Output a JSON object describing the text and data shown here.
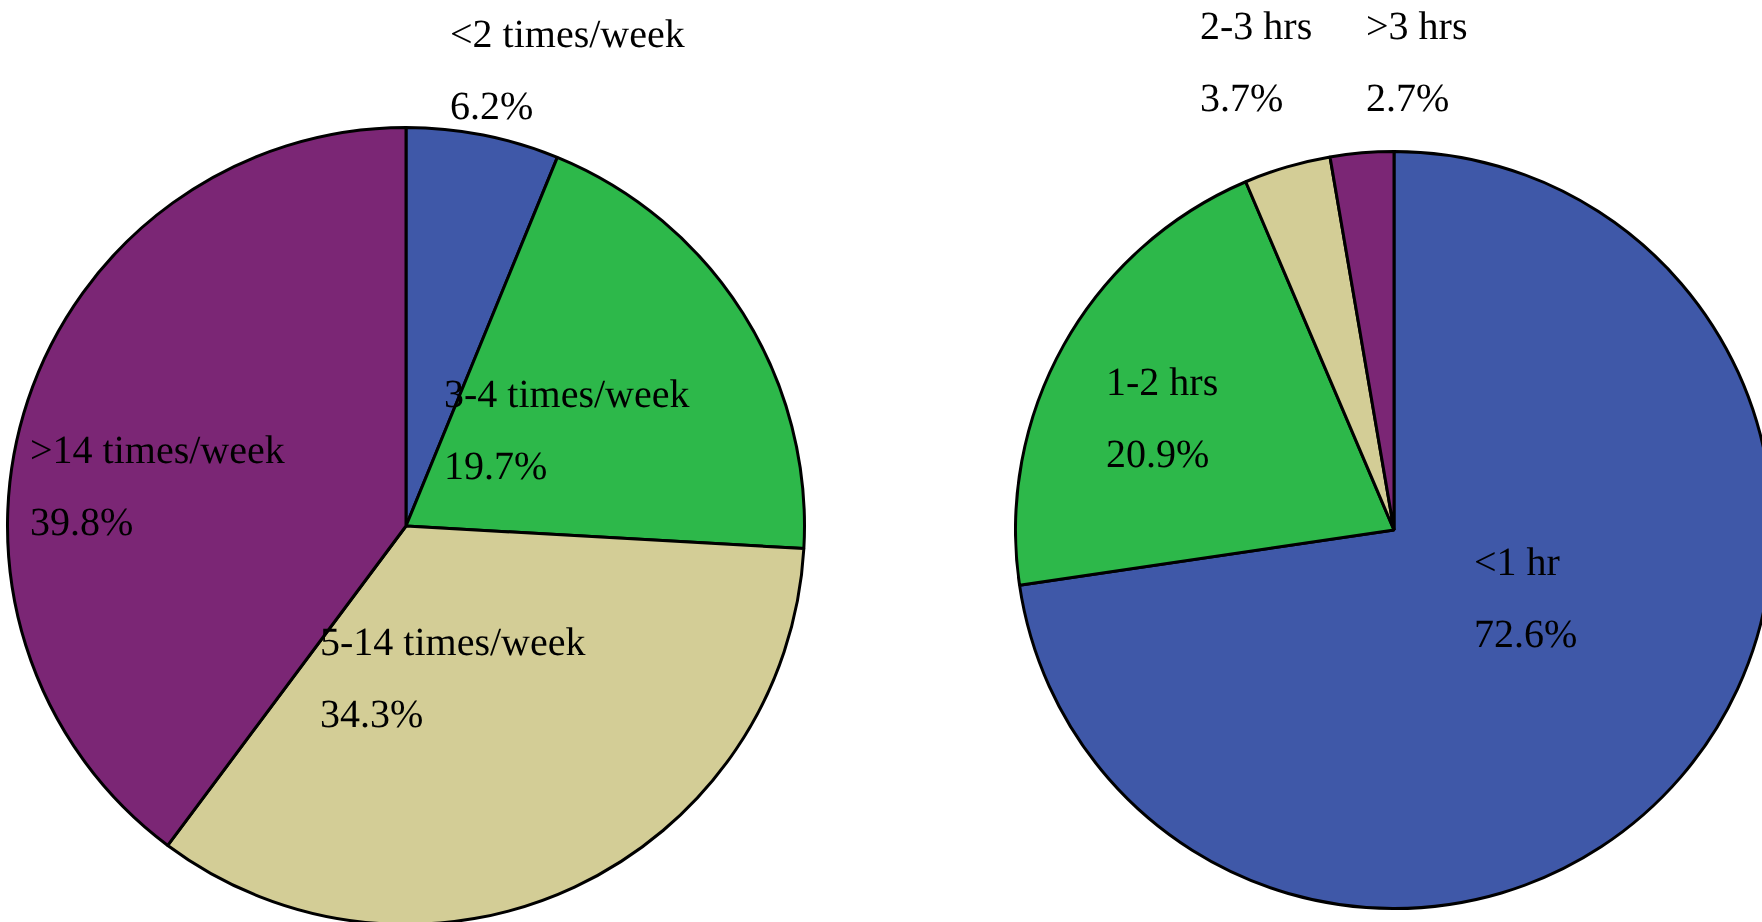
{
  "chart_data": [
    {
      "type": "pie",
      "categories": [
        "<2 times/week",
        "3-4 times/week",
        "5-14 times/week",
        ">14 times/week"
      ],
      "values": [
        6.2,
        19.7,
        34.3,
        39.8
      ],
      "value_labels": [
        "6.2%",
        "19.7%",
        "34.3%",
        "39.8%"
      ],
      "colors": [
        "#3f58a8",
        "#2db84a",
        "#d3cd96",
        "#7b2675"
      ]
    },
    {
      "type": "pie",
      "categories": [
        "<1 hr",
        "1-2 hrs",
        "2-3 hrs",
        ">3 hrs"
      ],
      "values": [
        72.6,
        20.9,
        3.7,
        2.7
      ],
      "value_labels": [
        "72.6%",
        "20.9%",
        "3.7%",
        "2.7%"
      ],
      "colors": [
        "#3f58a8",
        "#2db84a",
        "#d3cd96",
        "#7b2675"
      ]
    }
  ]
}
